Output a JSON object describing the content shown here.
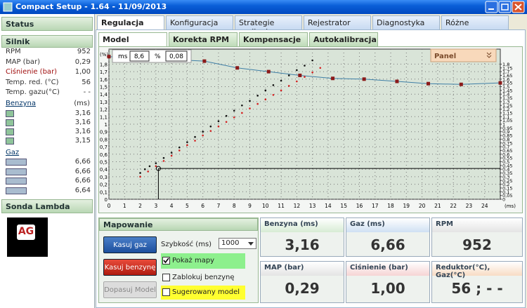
{
  "window": {
    "title": "Compact Setup - 1.64 - 11/09/2013"
  },
  "sidebar": {
    "status": "Status",
    "engine": "Silnik",
    "engine_rows": [
      [
        "RPM",
        "952"
      ],
      [
        "MAP (bar)",
        "0,29"
      ],
      [
        "Ciśnienie (bar)",
        "1,00"
      ],
      [
        "Temp. red. (°C)",
        "56"
      ],
      [
        "Temp. gazu(°C)",
        "- -"
      ]
    ],
    "petrol": {
      "label": "Benzyna",
      "unit": "(ms)",
      "values": [
        "3,16",
        "3,16",
        "3,16",
        "3,15"
      ]
    },
    "gas": {
      "label": "Gaz",
      "values": [
        "6,66",
        "6,66",
        "6,66",
        "6,64"
      ]
    },
    "lambda": "Sonda Lambda",
    "logo": "AG"
  },
  "tabs": [
    "Regulacja",
    "Konfiguracja",
    "Strategie zasilania",
    "Rejestrator",
    "Diagnostyka",
    "Różne"
  ],
  "subtabs": [
    "Model",
    "Korekta RPM",
    "Kompensacje",
    "Autokalibracja"
  ],
  "chart_panel": {
    "ms_label": "ms",
    "ms_value": "8,6",
    "pct_label": "%",
    "pct_value": "0,08",
    "panel": "Panel"
  },
  "chart_data": {
    "type": "scatter",
    "xlabel": "(ms)",
    "ylabel": "(%)",
    "grid": true,
    "xlim": [
      0,
      25
    ],
    "ylim": [
      0,
      2
    ],
    "y2lim": [
      0,
      2
    ],
    "xticks": [
      0,
      1,
      2,
      3,
      4,
      5,
      6,
      7,
      8,
      9,
      10,
      11,
      12,
      13,
      14,
      15,
      16,
      17,
      18,
      19,
      20,
      21,
      22,
      23,
      24
    ],
    "yticks": [
      0,
      {
        "value": 0.1,
        "label": "0,1"
      },
      {
        "value": 0.2,
        "label": "0,2"
      },
      {
        "value": 0.3,
        "label": "0,3"
      },
      {
        "value": 0.4,
        "label": "0,4"
      },
      {
        "value": 0.5,
        "label": "0,5"
      },
      {
        "value": 0.6,
        "label": "0,6"
      },
      {
        "value": 0.7,
        "label": "0,7"
      },
      {
        "value": 0.8,
        "label": "0,8"
      },
      {
        "value": 0.9,
        "label": "0,9"
      },
      1,
      {
        "value": 1.1,
        "label": "1,1"
      },
      {
        "value": 1.2,
        "label": "1,2"
      },
      {
        "value": 1.3,
        "label": "1,3"
      },
      {
        "value": 1.4,
        "label": "1,4"
      },
      {
        "value": 1.5,
        "label": "1,5"
      },
      {
        "value": 1.6,
        "label": "1,6"
      },
      {
        "value": 1.7,
        "label": "1,7"
      },
      {
        "value": 1.8,
        "label": "1,8"
      }
    ],
    "y2ticks": [
      0,
      {
        "value": 0.05,
        "label": "0,05"
      },
      {
        "value": 0.1,
        "label": "0,1"
      },
      {
        "value": 0.15,
        "label": "0,15"
      },
      {
        "value": 0.2,
        "label": "0,2"
      },
      {
        "value": 0.25,
        "label": "0,25"
      },
      {
        "value": 0.3,
        "label": "0,3"
      },
      {
        "value": 0.35,
        "label": "0,35"
      },
      {
        "value": 0.4,
        "label": "0,4"
      },
      {
        "value": 0.45,
        "label": "0,45"
      },
      {
        "value": 0.5,
        "label": "0,5"
      },
      {
        "value": 0.55,
        "label": "0,55"
      },
      {
        "value": 0.6,
        "label": "0,6"
      },
      {
        "value": 0.65,
        "label": "0,65"
      },
      {
        "value": 0.7,
        "label": "0,7"
      },
      {
        "value": 0.75,
        "label": "0,75"
      },
      {
        "value": 0.8,
        "label": "0,8"
      },
      {
        "value": 0.85,
        "label": "0,85"
      },
      {
        "value": 0.9,
        "label": "0,9"
      },
      {
        "value": 0.95,
        "label": "0,95"
      },
      1,
      {
        "value": 1.05,
        "label": "1,05"
      },
      {
        "value": 1.1,
        "label": "1,1"
      },
      {
        "value": 1.15,
        "label": "1,15"
      },
      {
        "value": 1.2,
        "label": "1,2"
      },
      {
        "value": 1.25,
        "label": "1,25"
      },
      {
        "value": 1.3,
        "label": "1,3"
      },
      {
        "value": 1.35,
        "label": "1,35"
      },
      {
        "value": 1.4,
        "label": "1,4"
      },
      {
        "value": 1.45,
        "label": "1,45"
      },
      {
        "value": 1.5,
        "label": "1,5"
      },
      {
        "value": 1.55,
        "label": "1,55"
      },
      {
        "value": 1.6,
        "label": "1,6"
      },
      {
        "value": 1.65,
        "label": "1,65"
      },
      {
        "value": 1.7,
        "label": "1,7"
      },
      {
        "value": 1.75,
        "label": "1,75"
      },
      {
        "value": 1.8,
        "label": "1,8"
      }
    ],
    "cursor": {
      "x": 3.16,
      "y": 0.41
    },
    "series": [
      {
        "style": "line",
        "color": "#3f7fa6",
        "marker_color": "#8b1a1a",
        "x": [
          0,
          6.1,
          8.2,
          10.2,
          12.2,
          14.3,
          16.3,
          18.4,
          20.4,
          22.5,
          25
        ],
        "values": [
          1.9,
          1.84,
          1.75,
          1.7,
          1.65,
          1.61,
          1.6,
          1.57,
          1.54,
          1.53,
          1.55
        ]
      },
      {
        "style": "dots",
        "color": "#d42020",
        "x": [
          2,
          2.5,
          3,
          3.5,
          4,
          4.5,
          5,
          5.5,
          6,
          6.5,
          7,
          7.5,
          8,
          8.5,
          9,
          9.5,
          10,
          10.5,
          11,
          11.5,
          12,
          12.5,
          13,
          13.5
        ],
        "values": [
          0.3,
          0.37,
          0.44,
          0.51,
          0.58,
          0.65,
          0.72,
          0.78,
          0.85,
          0.91,
          0.97,
          1.03,
          1.09,
          1.15,
          1.21,
          1.27,
          1.33,
          1.39,
          1.45,
          1.51,
          1.57,
          1.63,
          1.69,
          1.75
        ]
      },
      {
        "style": "dots",
        "color": "#111111",
        "x": [
          2,
          2.3,
          2.6,
          3,
          3.5,
          4,
          4.5,
          5,
          5.5,
          6,
          6.5,
          7,
          7.5,
          8,
          8.5,
          9,
          9.5,
          10,
          10.5,
          11,
          11.5,
          12,
          12.5,
          13
        ],
        "values": [
          0.35,
          0.4,
          0.44,
          0.48,
          0.55,
          0.62,
          0.69,
          0.76,
          0.83,
          0.9,
          0.97,
          1.04,
          1.11,
          1.18,
          1.25,
          1.31,
          1.38,
          1.45,
          1.52,
          1.58,
          1.65,
          1.72,
          1.78,
          1.85
        ]
      }
    ]
  },
  "mapping": {
    "title": "Mapowanie",
    "btn_reset_gas": "Kasuj gaz",
    "btn_reset_petrol": "Kasuj benzynę",
    "btn_fit": "Dopasuj Model",
    "speed_label": "Szybkość (ms)",
    "speed_value": "1000",
    "show_maps": "Pokaż mapy",
    "lock_petrol": "Zablokuj benzynę",
    "suggested": "Sugerowany model"
  },
  "tiles": [
    {
      "label": "Benzyna (ms)",
      "value": "3,16"
    },
    {
      "label": "Gaz (ms)",
      "value": "6,66"
    },
    {
      "label": "RPM",
      "value": "952"
    },
    {
      "label": "MAP (bar)",
      "value": "0,29"
    },
    {
      "label": "Ciśnienie (bar)",
      "value": "1,00"
    },
    {
      "label": "Reduktor(°C), Gaz(°C)",
      "value": "56 ; - -"
    }
  ]
}
